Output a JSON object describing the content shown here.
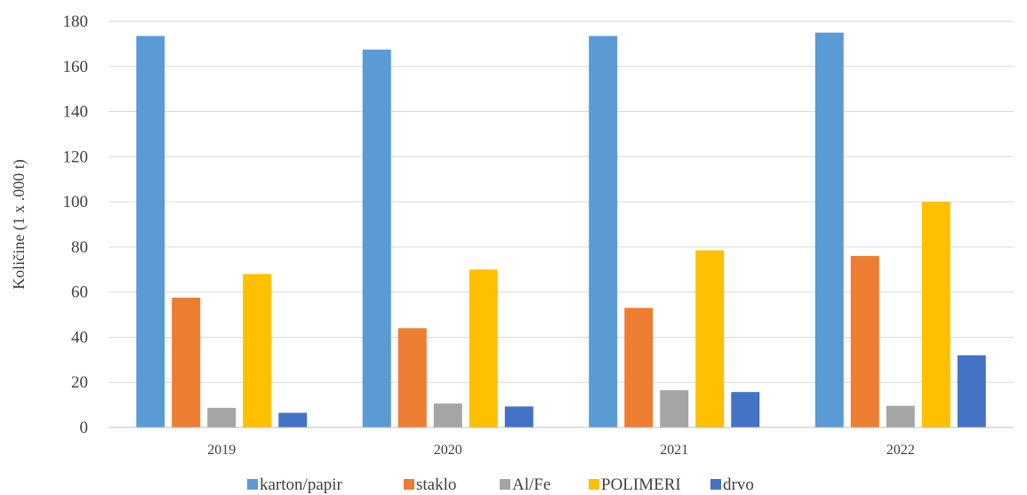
{
  "chart_data": {
    "type": "bar",
    "categories": [
      "2019",
      "2020",
      "2021",
      "2022"
    ],
    "series": [
      {
        "name": "karton/papir",
        "color": "#5b9bd5",
        "values": [
          173.5,
          167.5,
          173.5,
          175
        ]
      },
      {
        "name": "staklo",
        "color": "#ed7d31",
        "values": [
          57.5,
          44,
          53,
          76
        ]
      },
      {
        "name": "Al/Fe",
        "color": "#a5a5a5",
        "values": [
          8.7,
          10.6,
          16.5,
          9.6
        ]
      },
      {
        "name": "POLIMERI",
        "color": "#ffc000",
        "values": [
          68,
          70,
          78.5,
          100
        ]
      },
      {
        "name": "drvo",
        "color": "#4472c4",
        "values": [
          6.5,
          9.3,
          15.7,
          32
        ]
      }
    ],
    "ylabel": "Količine (1 x .000 t)",
    "ylim": [
      0,
      180
    ],
    "yticks": [
      "0",
      "20",
      "40",
      "60",
      "80",
      "100",
      "120",
      "140",
      "160",
      "180"
    ],
    "grid": true,
    "legend_position": "bottom"
  }
}
